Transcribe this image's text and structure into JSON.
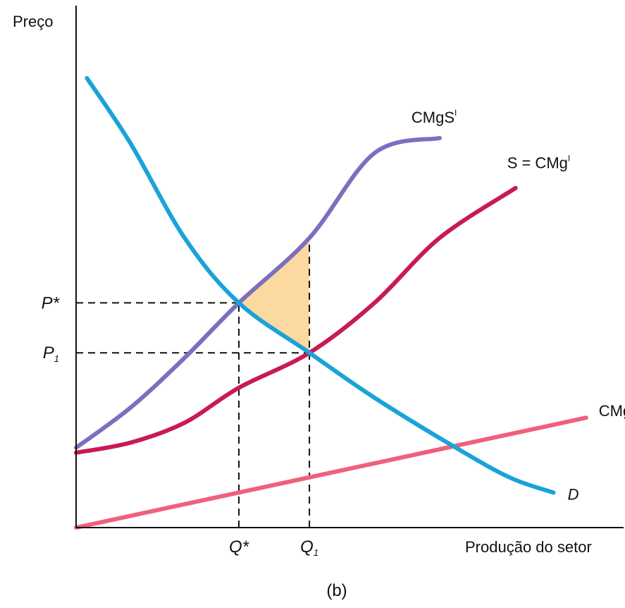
{
  "chart_data": {
    "type": "line",
    "title": "",
    "panel_label": "(b)",
    "xlabel": "Produção do setor",
    "ylabel": "Preço",
    "xlim": [
      0,
      10
    ],
    "ylim": [
      0,
      10
    ],
    "grid": false,
    "x_ticks": [
      {
        "key": "q_star",
        "label": "Q*",
        "value": 3.0
      },
      {
        "key": "q1",
        "label": "Q",
        "sub": "1",
        "value": 4.3
      }
    ],
    "y_ticks": [
      {
        "key": "p_star",
        "label": "P*",
        "value": 4.5
      },
      {
        "key": "p1",
        "label": "P",
        "sub": "1",
        "value": 3.5
      }
    ],
    "series": [
      {
        "key": "demand",
        "name": "D",
        "label_sub": "",
        "label_sup": "",
        "color": "#1aa3d8",
        "x": [
          0.2,
          1.0,
          2.0,
          3.0,
          4.3,
          5.5,
          7.0,
          8.0,
          8.8
        ],
        "y": [
          9.0,
          7.7,
          5.8,
          4.5,
          3.5,
          2.6,
          1.6,
          1.0,
          0.7
        ]
      },
      {
        "key": "cmgs",
        "name": "CMgS",
        "label_sup": "I",
        "color": "#7b6fbe",
        "x": [
          0.0,
          1.0,
          2.0,
          3.0,
          4.3,
          5.5,
          6.7
        ],
        "y": [
          1.6,
          2.4,
          3.4,
          4.5,
          5.8,
          7.5,
          7.8
        ]
      },
      {
        "key": "supply",
        "name": "S = CMg",
        "label_sup": "I",
        "color": "#c8195a",
        "x": [
          0.0,
          1.0,
          2.0,
          3.0,
          4.3,
          5.5,
          6.7,
          8.1
        ],
        "y": [
          1.5,
          1.7,
          2.1,
          2.8,
          3.5,
          4.5,
          5.8,
          6.8
        ]
      },
      {
        "key": "cmge",
        "name": "CMgE",
        "label_sup": "I",
        "color": "#f0607a",
        "x": [
          0.0,
          9.4
        ],
        "y": [
          0.0,
          2.2
        ]
      }
    ],
    "shaded_region": {
      "description": "deadweight loss triangle between Q* and Q1",
      "color": "#fbd9a0",
      "vertices": [
        [
          3.0,
          4.5
        ],
        [
          4.3,
          5.8
        ],
        [
          4.3,
          3.5
        ]
      ]
    },
    "guide_lines": [
      {
        "type": "h",
        "y": 4.5,
        "x_to": 3.0
      },
      {
        "type": "h",
        "y": 3.5,
        "x_to": 4.3
      },
      {
        "type": "v",
        "x": 3.0,
        "y_to": 4.5
      },
      {
        "type": "v",
        "x": 4.3,
        "y_to": 5.8
      }
    ]
  }
}
